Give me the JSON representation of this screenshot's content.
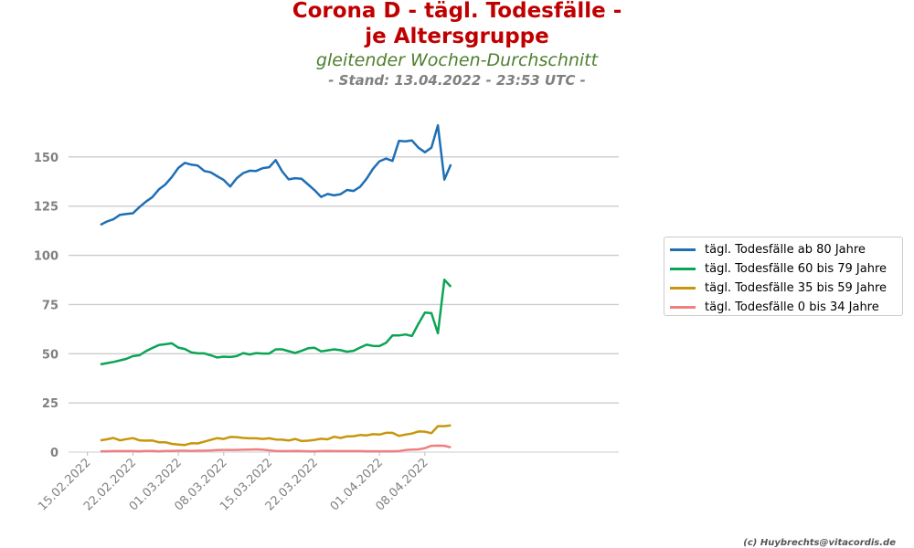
{
  "header": {
    "title_line1": "Corona D - tägl. Todesfälle -",
    "title_line2": "je Altersgruppe",
    "subtitle": "gleitender Wochen-Durchschnitt",
    "stand": "- Stand: 13.04.2022 - 23:53 UTC -"
  },
  "credit": "(c) Huybrechts@vitacordis.de",
  "chart_data": {
    "type": "line",
    "title": "Corona D - tägl. Todesfälle - je Altersgruppe",
    "subtitle": "gleitender Wochen-Durchschnitt",
    "xlabel": "",
    "ylabel": "",
    "x_start": "2022-02-17",
    "x_tick_labels": [
      "15.02.2022",
      "22.02.2022",
      "01.03.2022",
      "08.03.2022",
      "15.03.2022",
      "22.03.2022",
      "01.04.2022",
      "08.04.2022"
    ],
    "x_tick_dates": [
      "2022-02-15",
      "2022-02-22",
      "2022-03-01",
      "2022-03-08",
      "2022-03-15",
      "2022-03-22",
      "2022-04-01",
      "2022-04-08"
    ],
    "y_ticks": [
      0,
      25,
      50,
      75,
      100,
      125,
      150
    ],
    "ylim": [
      0,
      175
    ],
    "grid": "horizontal",
    "legend_position": "right",
    "series": [
      {
        "name": "tägl. Todesfälle ab 80 Jahre",
        "color": "#1f6fb4",
        "values": [
          115.5,
          117.2,
          118.3,
          120.6,
          121.0,
          121.4,
          124.5,
          127.3,
          129.6,
          133.5,
          136.0,
          139.8,
          144.4,
          147.0,
          146.1,
          145.6,
          142.9,
          142.2,
          140.2,
          138.3,
          135.0,
          139.2,
          141.8,
          143.0,
          142.9,
          144.3,
          144.8,
          148.4,
          142.7,
          138.6,
          139.2,
          138.9,
          136.0,
          133.1,
          129.7,
          131.2,
          130.5,
          131.1,
          133.2,
          132.7,
          134.8,
          138.9,
          144.0,
          147.8,
          149.2,
          148.0,
          158.2,
          157.9,
          158.4,
          154.7,
          152.4,
          154.7,
          166.1,
          138.5,
          146.2
        ]
      },
      {
        "name": "tägl. Todesfälle 60 bis 79 Jahre",
        "color": "#0aa554",
        "values": [
          44.6,
          45.2,
          45.8,
          46.6,
          47.4,
          48.8,
          49.2,
          51.3,
          52.9,
          54.4,
          54.8,
          55.3,
          53.1,
          52.4,
          50.7,
          50.2,
          50.2,
          49.2,
          48.1,
          48.5,
          48.3,
          48.8,
          50.3,
          49.6,
          50.3,
          50.1,
          50.1,
          52.2,
          52.2,
          51.3,
          50.4,
          51.5,
          52.8,
          53.0,
          51.2,
          51.7,
          52.2,
          51.8,
          51.0,
          51.5,
          53.1,
          54.6,
          54.0,
          53.9,
          55.5,
          59.3,
          59.3,
          59.8,
          59.0,
          65.2,
          70.9,
          70.6,
          60.4,
          87.6,
          84.0
        ]
      },
      {
        "name": "tägl. Todesfälle 35 bis 59 Jahre",
        "color": "#c8960c",
        "values": [
          6.0,
          6.5,
          7.2,
          6.0,
          6.6,
          7.1,
          6.0,
          5.8,
          5.9,
          5.0,
          5.0,
          4.2,
          3.8,
          3.6,
          4.5,
          4.4,
          5.3,
          6.2,
          7.1,
          6.7,
          7.7,
          7.6,
          7.2,
          7.0,
          7.0,
          6.7,
          7.0,
          6.4,
          6.3,
          5.9,
          6.7,
          5.6,
          5.8,
          6.2,
          6.8,
          6.5,
          7.8,
          7.2,
          8.0,
          8.1,
          8.7,
          8.5,
          9.1,
          8.9,
          9.8,
          9.8,
          8.2,
          8.9,
          9.4,
          10.5,
          10.4,
          9.6,
          13.2,
          13.2,
          13.6
        ]
      },
      {
        "name": "tägl. Todesfälle 0 bis 34 Jahre",
        "color": "#f08080",
        "values": [
          0.4,
          0.4,
          0.5,
          0.5,
          0.5,
          0.5,
          0.4,
          0.6,
          0.6,
          0.4,
          0.6,
          0.6,
          0.7,
          0.7,
          0.6,
          0.7,
          0.7,
          0.8,
          1.0,
          1.1,
          1.1,
          1.1,
          1.2,
          1.3,
          1.4,
          1.2,
          0.9,
          0.6,
          0.5,
          0.5,
          0.6,
          0.5,
          0.4,
          0.4,
          0.5,
          0.6,
          0.5,
          0.5,
          0.5,
          0.5,
          0.5,
          0.4,
          0.4,
          0.4,
          0.4,
          0.4,
          0.5,
          1.0,
          1.3,
          1.4,
          2.0,
          3.2,
          3.3,
          3.2,
          2.4
        ]
      }
    ]
  }
}
